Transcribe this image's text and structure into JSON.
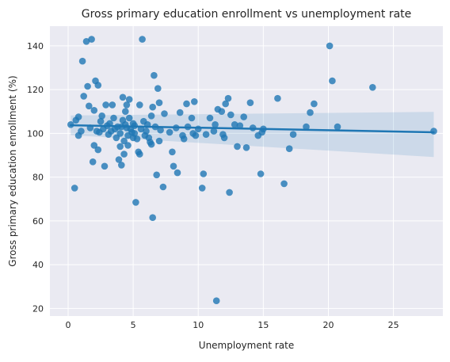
{
  "chart_data": {
    "type": "scatter",
    "title": "Gross primary education enrollment vs unemployment rate",
    "xlabel": "Unemployment rate",
    "ylabel": "Gross primary education enrollment (%)",
    "xlim": [
      -1.4,
      28.8
    ],
    "ylim": [
      16.5,
      149
    ],
    "xticks": [
      0,
      5,
      10,
      15,
      20,
      25
    ],
    "yticks": [
      20,
      40,
      60,
      80,
      100,
      120,
      140
    ],
    "grid": true,
    "style": "seaborn-darkgrid",
    "colors": {
      "background": "#eaeaf2",
      "grid": "#ffffff",
      "points": "#1f77b4",
      "line": "#1f77b4",
      "ci_band": "#1f77b4"
    },
    "points": [
      [
        0.2,
        104
      ],
      [
        0.5,
        75
      ],
      [
        0.6,
        106
      ],
      [
        0.8,
        107.5
      ],
      [
        0.8,
        99
      ],
      [
        1.0,
        101
      ],
      [
        1.1,
        133
      ],
      [
        1.2,
        117
      ],
      [
        1.4,
        142
      ],
      [
        1.5,
        121.5
      ],
      [
        1.6,
        112.5
      ],
      [
        1.7,
        102.5
      ],
      [
        1.8,
        143
      ],
      [
        1.9,
        87
      ],
      [
        2.0,
        94.5
      ],
      [
        2.0,
        110.5
      ],
      [
        2.1,
        124
      ],
      [
        2.2,
        101
      ],
      [
        2.3,
        122
      ],
      [
        2.3,
        92.5
      ],
      [
        2.4,
        100.5
      ],
      [
        2.5,
        105.5
      ],
      [
        2.6,
        108
      ],
      [
        2.7,
        102
      ],
      [
        2.8,
        85
      ],
      [
        2.9,
        113
      ],
      [
        3.0,
        103.5
      ],
      [
        3.1,
        99.5
      ],
      [
        3.2,
        104.5
      ],
      [
        3.3,
        101
      ],
      [
        3.4,
        113
      ],
      [
        3.5,
        107
      ],
      [
        3.6,
        102
      ],
      [
        3.7,
        98
      ],
      [
        3.8,
        103
      ],
      [
        3.9,
        88
      ],
      [
        4.0,
        94
      ],
      [
        4.0,
        100
      ],
      [
        4.1,
        85.5
      ],
      [
        4.1,
        103
      ],
      [
        4.2,
        116.5
      ],
      [
        4.2,
        106
      ],
      [
        4.3,
        96.5
      ],
      [
        4.3,
        90.5
      ],
      [
        4.4,
        104
      ],
      [
        4.4,
        110
      ],
      [
        4.5,
        102.5
      ],
      [
        4.5,
        113
      ],
      [
        4.6,
        99
      ],
      [
        4.6,
        94.5
      ],
      [
        4.7,
        115.5
      ],
      [
        4.7,
        107
      ],
      [
        4.8,
        102
      ],
      [
        4.9,
        100.5
      ],
      [
        5.0,
        104.5
      ],
      [
        5.0,
        98
      ],
      [
        5.1,
        103.5
      ],
      [
        5.1,
        100
      ],
      [
        5.2,
        68.5
      ],
      [
        5.3,
        97.5
      ],
      [
        5.4,
        91.5
      ],
      [
        5.5,
        113
      ],
      [
        5.5,
        90.5
      ],
      [
        5.6,
        102
      ],
      [
        5.7,
        143
      ],
      [
        5.8,
        105.5
      ],
      [
        5.9,
        99
      ],
      [
        6.0,
        101
      ],
      [
        6.1,
        104
      ],
      [
        6.2,
        98
      ],
      [
        6.3,
        96
      ],
      [
        6.4,
        108
      ],
      [
        6.4,
        95
      ],
      [
        6.5,
        112
      ],
      [
        6.5,
        61.5
      ],
      [
        6.6,
        126.5
      ],
      [
        6.7,
        103
      ],
      [
        6.8,
        81
      ],
      [
        6.9,
        120.5
      ],
      [
        7.0,
        114
      ],
      [
        7.0,
        96.5
      ],
      [
        7.1,
        101.5
      ],
      [
        7.3,
        75.5
      ],
      [
        7.4,
        109
      ],
      [
        7.8,
        100.5
      ],
      [
        8.0,
        91.5
      ],
      [
        8.1,
        85
      ],
      [
        8.3,
        102.5
      ],
      [
        8.4,
        82
      ],
      [
        8.6,
        109.5
      ],
      [
        8.8,
        99
      ],
      [
        8.9,
        97.5
      ],
      [
        9.1,
        113.5
      ],
      [
        9.2,
        103
      ],
      [
        9.5,
        107
      ],
      [
        9.6,
        100
      ],
      [
        9.7,
        114.5
      ],
      [
        9.8,
        99
      ],
      [
        10.0,
        102
      ],
      [
        10.3,
        75
      ],
      [
        10.4,
        81.5
      ],
      [
        10.6,
        99.5
      ],
      [
        10.9,
        107
      ],
      [
        11.2,
        101
      ],
      [
        11.3,
        104
      ],
      [
        11.4,
        23.5
      ],
      [
        11.5,
        111
      ],
      [
        11.8,
        110
      ],
      [
        11.9,
        99.5
      ],
      [
        12.0,
        98
      ],
      [
        12.1,
        113.5
      ],
      [
        12.3,
        116
      ],
      [
        12.4,
        73
      ],
      [
        12.5,
        108.5
      ],
      [
        12.8,
        104
      ],
      [
        13.0,
        94
      ],
      [
        13.2,
        103.5
      ],
      [
        13.5,
        107.5
      ],
      [
        13.7,
        93.5
      ],
      [
        14.0,
        114
      ],
      [
        14.2,
        102.5
      ],
      [
        14.6,
        99
      ],
      [
        14.8,
        81.5
      ],
      [
        14.9,
        100.5
      ],
      [
        15.0,
        102
      ],
      [
        16.1,
        116
      ],
      [
        16.6,
        77
      ],
      [
        17.0,
        93
      ],
      [
        17.3,
        99.5
      ],
      [
        18.3,
        103
      ],
      [
        18.6,
        109.5
      ],
      [
        18.9,
        113.5
      ],
      [
        20.1,
        140
      ],
      [
        20.3,
        124
      ],
      [
        20.7,
        103
      ],
      [
        23.4,
        121
      ],
      [
        28.1,
        101
      ]
    ],
    "regression": {
      "x": [
        0.2,
        28.1
      ],
      "y": [
        103.7,
        100.5
      ],
      "ci_lower": [
        99.2,
        89.2
      ],
      "ci_upper": [
        108.2,
        109.8
      ]
    }
  }
}
